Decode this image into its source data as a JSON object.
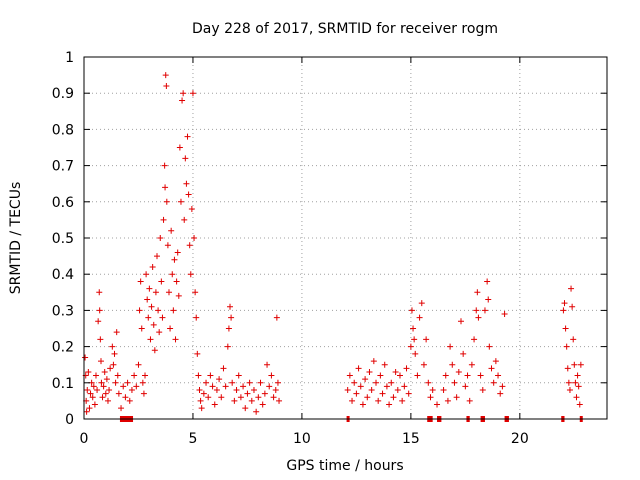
{
  "chart_data": {
    "type": "scatter",
    "title": "Day 228 of 2017, SRMTID for receiver rogm",
    "xlabel": "GPS time / hours",
    "ylabel": "SRMTID / TECUs",
    "xlim": [
      0,
      24
    ],
    "ylim": [
      0,
      1
    ],
    "xticks": [
      0,
      5,
      10,
      15,
      20
    ],
    "yticks": [
      0,
      0.1,
      0.2,
      0.3,
      0.4,
      0.5,
      0.6,
      0.7,
      0.8,
      0.9,
      1
    ],
    "xtick_labels": [
      "0",
      "5",
      "10",
      "15",
      "20"
    ],
    "ytick_labels": [
      "0",
      "0.1",
      "0.2",
      "0.3",
      "0.4",
      "0.5",
      "0.6",
      "0.7",
      "0.8",
      "0.9",
      "1"
    ],
    "grid": true,
    "marker": "+",
    "color": "#e00000",
    "series": [
      {
        "points": [
          [
            0.05,
            0.17
          ],
          [
            0.08,
            0.12
          ],
          [
            0.1,
            0.05
          ],
          [
            0.12,
            0.02
          ],
          [
            0.15,
            0.08
          ],
          [
            0.2,
            0.13
          ],
          [
            0.25,
            0.03
          ],
          [
            0.3,
            0.07
          ],
          [
            0.35,
            0.1
          ],
          [
            0.4,
            0.06
          ],
          [
            0.45,
            0.09
          ],
          [
            0.5,
            0.04
          ],
          [
            0.55,
            0.12
          ],
          [
            0.6,
            0.08
          ],
          [
            0.65,
            0.27
          ],
          [
            0.7,
            0.35
          ],
          [
            0.72,
            0.3
          ],
          [
            0.75,
            0.22
          ],
          [
            0.78,
            0.16
          ],
          [
            0.8,
            0.1
          ],
          [
            0.85,
            0.06
          ],
          [
            0.9,
            0.09
          ],
          [
            0.95,
            0.13
          ],
          [
            1.0,
            0.07
          ],
          [
            1.05,
            0.11
          ],
          [
            1.1,
            0.05
          ],
          [
            1.15,
            0.08
          ],
          [
            1.2,
            0.14
          ],
          [
            1.3,
            0.2
          ],
          [
            1.35,
            0.15
          ],
          [
            1.4,
            0.18
          ],
          [
            1.45,
            0.1
          ],
          [
            1.5,
            0.24
          ],
          [
            1.55,
            0.12
          ],
          [
            1.6,
            0.07
          ],
          [
            1.7,
            0.03
          ],
          [
            1.8,
            0.09
          ],
          [
            1.9,
            0.06
          ],
          [
            2.0,
            0.1
          ],
          [
            2.1,
            0.05
          ],
          [
            2.2,
            0.08
          ],
          [
            2.3,
            0.12
          ],
          [
            2.4,
            0.09
          ],
          [
            2.5,
            0.15
          ],
          [
            2.55,
            0.3
          ],
          [
            2.6,
            0.38
          ],
          [
            2.65,
            0.25
          ],
          [
            2.7,
            0.1
          ],
          [
            2.75,
            0.07
          ],
          [
            2.8,
            0.12
          ],
          [
            2.85,
            0.4
          ],
          [
            2.9,
            0.33
          ],
          [
            2.95,
            0.28
          ],
          [
            3.0,
            0.36
          ],
          [
            3.05,
            0.22
          ],
          [
            3.1,
            0.31
          ],
          [
            3.15,
            0.42
          ],
          [
            3.2,
            0.26
          ],
          [
            3.25,
            0.19
          ],
          [
            3.3,
            0.35
          ],
          [
            3.35,
            0.45
          ],
          [
            3.4,
            0.3
          ],
          [
            3.45,
            0.24
          ],
          [
            3.5,
            0.5
          ],
          [
            3.55,
            0.38
          ],
          [
            3.6,
            0.28
          ],
          [
            3.65,
            0.55
          ],
          [
            3.7,
            0.7
          ],
          [
            3.72,
            0.64
          ],
          [
            3.75,
            0.95
          ],
          [
            3.78,
            0.92
          ],
          [
            3.8,
            0.6
          ],
          [
            3.85,
            0.48
          ],
          [
            3.9,
            0.35
          ],
          [
            3.95,
            0.25
          ],
          [
            4.0,
            0.52
          ],
          [
            4.05,
            0.4
          ],
          [
            4.1,
            0.3
          ],
          [
            4.15,
            0.44
          ],
          [
            4.2,
            0.22
          ],
          [
            4.25,
            0.38
          ],
          [
            4.3,
            0.46
          ],
          [
            4.35,
            0.34
          ],
          [
            4.4,
            0.75
          ],
          [
            4.45,
            0.6
          ],
          [
            4.5,
            0.88
          ],
          [
            4.55,
            0.9
          ],
          [
            4.6,
            0.55
          ],
          [
            4.65,
            0.72
          ],
          [
            4.7,
            0.65
          ],
          [
            4.75,
            0.78
          ],
          [
            4.8,
            0.62
          ],
          [
            4.85,
            0.48
          ],
          [
            4.9,
            0.4
          ],
          [
            4.95,
            0.58
          ],
          [
            5.0,
            0.9
          ],
          [
            5.05,
            0.5
          ],
          [
            5.1,
            0.35
          ],
          [
            5.15,
            0.28
          ],
          [
            5.2,
            0.18
          ],
          [
            5.25,
            0.12
          ],
          [
            5.3,
            0.08
          ],
          [
            5.35,
            0.05
          ],
          [
            5.4,
            0.03
          ],
          [
            5.5,
            0.07
          ],
          [
            5.6,
            0.1
          ],
          [
            5.7,
            0.06
          ],
          [
            5.8,
            0.12
          ],
          [
            5.9,
            0.09
          ],
          [
            6.0,
            0.04
          ],
          [
            6.1,
            0.08
          ],
          [
            6.2,
            0.11
          ],
          [
            6.3,
            0.06
          ],
          [
            6.4,
            0.14
          ],
          [
            6.5,
            0.09
          ],
          [
            6.6,
            0.2
          ],
          [
            6.65,
            0.25
          ],
          [
            6.7,
            0.31
          ],
          [
            6.75,
            0.28
          ],
          [
            6.8,
            0.1
          ],
          [
            6.9,
            0.05
          ],
          [
            7.0,
            0.08
          ],
          [
            7.1,
            0.12
          ],
          [
            7.2,
            0.06
          ],
          [
            7.3,
            0.09
          ],
          [
            7.4,
            0.03
          ],
          [
            7.5,
            0.07
          ],
          [
            7.6,
            0.1
          ],
          [
            7.7,
            0.05
          ],
          [
            7.8,
            0.08
          ],
          [
            7.9,
            0.02
          ],
          [
            8.0,
            0.06
          ],
          [
            8.1,
            0.1
          ],
          [
            8.2,
            0.04
          ],
          [
            8.3,
            0.07
          ],
          [
            8.4,
            0.15
          ],
          [
            8.5,
            0.09
          ],
          [
            8.6,
            0.12
          ],
          [
            8.7,
            0.06
          ],
          [
            8.8,
            0.08
          ],
          [
            8.85,
            0.28
          ],
          [
            8.9,
            0.1
          ],
          [
            8.95,
            0.05
          ],
          [
            12.1,
            0.08
          ],
          [
            12.2,
            0.12
          ],
          [
            12.3,
            0.05
          ],
          [
            12.4,
            0.1
          ],
          [
            12.5,
            0.07
          ],
          [
            12.6,
            0.14
          ],
          [
            12.7,
            0.09
          ],
          [
            12.8,
            0.04
          ],
          [
            12.9,
            0.11
          ],
          [
            13.0,
            0.06
          ],
          [
            13.1,
            0.13
          ],
          [
            13.2,
            0.08
          ],
          [
            13.3,
            0.16
          ],
          [
            13.4,
            0.1
          ],
          [
            13.5,
            0.05
          ],
          [
            13.6,
            0.12
          ],
          [
            13.7,
            0.07
          ],
          [
            13.8,
            0.15
          ],
          [
            13.9,
            0.09
          ],
          [
            14.0,
            0.04
          ],
          [
            14.1,
            0.1
          ],
          [
            14.2,
            0.06
          ],
          [
            14.3,
            0.13
          ],
          [
            14.4,
            0.08
          ],
          [
            14.5,
            0.12
          ],
          [
            14.6,
            0.05
          ],
          [
            14.7,
            0.09
          ],
          [
            14.8,
            0.14
          ],
          [
            14.9,
            0.07
          ],
          [
            15.0,
            0.2
          ],
          [
            15.05,
            0.3
          ],
          [
            15.1,
            0.25
          ],
          [
            15.15,
            0.22
          ],
          [
            15.2,
            0.18
          ],
          [
            15.3,
            0.12
          ],
          [
            15.4,
            0.28
          ],
          [
            15.5,
            0.32
          ],
          [
            15.6,
            0.15
          ],
          [
            15.7,
            0.22
          ],
          [
            15.8,
            0.1
          ],
          [
            15.9,
            0.06
          ],
          [
            16.0,
            0.08
          ],
          [
            16.2,
            0.04
          ],
          [
            16.5,
            0.08
          ],
          [
            16.6,
            0.12
          ],
          [
            16.7,
            0.05
          ],
          [
            16.8,
            0.2
          ],
          [
            16.9,
            0.15
          ],
          [
            17.0,
            0.1
          ],
          [
            17.1,
            0.06
          ],
          [
            17.2,
            0.13
          ],
          [
            17.3,
            0.27
          ],
          [
            17.4,
            0.18
          ],
          [
            17.5,
            0.09
          ],
          [
            17.6,
            0.12
          ],
          [
            17.7,
            0.05
          ],
          [
            17.8,
            0.15
          ],
          [
            17.9,
            0.22
          ],
          [
            18.0,
            0.3
          ],
          [
            18.05,
            0.35
          ],
          [
            18.1,
            0.28
          ],
          [
            18.2,
            0.12
          ],
          [
            18.3,
            0.08
          ],
          [
            18.4,
            0.3
          ],
          [
            18.5,
            0.38
          ],
          [
            18.55,
            0.33
          ],
          [
            18.6,
            0.2
          ],
          [
            18.7,
            0.14
          ],
          [
            18.8,
            0.1
          ],
          [
            18.9,
            0.16
          ],
          [
            19.0,
            0.12
          ],
          [
            19.1,
            0.07
          ],
          [
            19.2,
            0.09
          ],
          [
            19.3,
            0.29
          ],
          [
            22.0,
            0.3
          ],
          [
            22.05,
            0.32
          ],
          [
            22.1,
            0.25
          ],
          [
            22.15,
            0.2
          ],
          [
            22.2,
            0.14
          ],
          [
            22.25,
            0.1
          ],
          [
            22.3,
            0.08
          ],
          [
            22.35,
            0.36
          ],
          [
            22.4,
            0.31
          ],
          [
            22.45,
            0.22
          ],
          [
            22.5,
            0.15
          ],
          [
            22.55,
            0.1
          ],
          [
            22.6,
            0.06
          ],
          [
            22.65,
            0.12
          ],
          [
            22.7,
            0.09
          ],
          [
            22.75,
            0.04
          ],
          [
            22.8,
            0.15
          ]
        ]
      }
    ],
    "baseline_flag_intervals": [
      [
        1.65,
        2.25
      ],
      [
        12.05,
        12.15
      ],
      [
        15.75,
        16.0
      ],
      [
        16.2,
        16.4
      ],
      [
        17.55,
        17.7
      ],
      [
        18.2,
        18.4
      ],
      [
        19.3,
        19.5
      ],
      [
        21.9,
        22.05
      ],
      [
        22.75,
        22.85
      ]
    ]
  }
}
